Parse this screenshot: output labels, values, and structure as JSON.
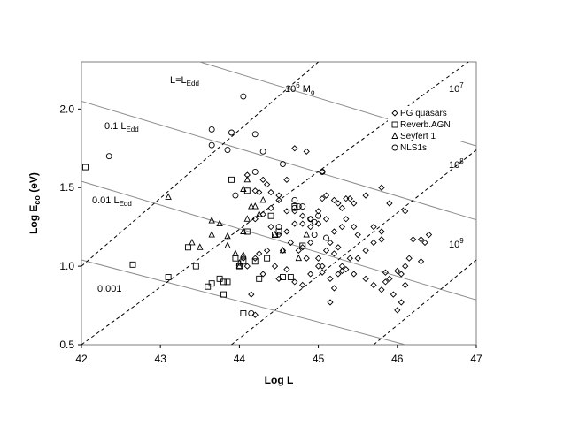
{
  "chart_data": {
    "type": "scatter",
    "xlabel": "Log L",
    "ylabel_main": "Log E",
    "ylabel_sub": "co",
    "ylabel_tail": " (eV)",
    "xlim": [
      42,
      47
    ],
    "ylim": [
      0.5,
      2.3
    ],
    "xticks": [
      "42",
      "43",
      "44",
      "45",
      "46",
      "47"
    ],
    "yticks": [
      "0.5",
      "1.0",
      "1.5",
      "2.0"
    ],
    "xtick_values": [
      42,
      43,
      44,
      45,
      46,
      47
    ],
    "ytick_values": [
      0.5,
      1.0,
      1.5,
      2.0
    ],
    "grid": false,
    "legend_position": "top-right",
    "series": [
      {
        "name": "PG quasars",
        "marker": "diamond",
        "points": [
          [
            44.1,
            1.58
          ],
          [
            44.2,
            1.48
          ],
          [
            44.25,
            1.47
          ],
          [
            44.3,
            1.55
          ],
          [
            44.35,
            1.52
          ],
          [
            44.4,
            1.47
          ],
          [
            44.5,
            1.45
          ],
          [
            44.6,
            1.55
          ],
          [
            44.7,
            1.75
          ],
          [
            44.85,
            1.73
          ],
          [
            45.05,
            1.6
          ],
          [
            44.4,
            1.37
          ],
          [
            44.5,
            1.42
          ],
          [
            44.6,
            1.35
          ],
          [
            44.7,
            1.35
          ],
          [
            44.8,
            1.32
          ],
          [
            44.9,
            1.3
          ],
          [
            45.0,
            1.35
          ],
          [
            45.05,
            1.43
          ],
          [
            45.1,
            1.45
          ],
          [
            45.2,
            1.42
          ],
          [
            45.25,
            1.4
          ],
          [
            45.3,
            1.37
          ],
          [
            45.35,
            1.43
          ],
          [
            45.4,
            1.43
          ],
          [
            45.45,
            1.4
          ],
          [
            45.6,
            1.45
          ],
          [
            45.8,
            1.5
          ],
          [
            45.9,
            1.4
          ],
          [
            44.2,
            1.3
          ],
          [
            44.3,
            1.33
          ],
          [
            44.4,
            1.25
          ],
          [
            44.5,
            1.2
          ],
          [
            44.6,
            1.22
          ],
          [
            44.7,
            1.27
          ],
          [
            44.8,
            1.27
          ],
          [
            44.9,
            1.25
          ],
          [
            45.0,
            1.27
          ],
          [
            45.1,
            1.3
          ],
          [
            45.2,
            1.22
          ],
          [
            45.3,
            1.25
          ],
          [
            45.35,
            1.3
          ],
          [
            45.45,
            1.25
          ],
          [
            45.5,
            1.2
          ],
          [
            45.7,
            1.25
          ],
          [
            45.8,
            1.22
          ],
          [
            44.05,
            1.05
          ],
          [
            44.1,
            1.0
          ],
          [
            44.2,
            1.05
          ],
          [
            44.35,
            1.1
          ],
          [
            44.45,
            1.0
          ],
          [
            44.55,
            1.1
          ],
          [
            44.65,
            1.15
          ],
          [
            44.75,
            1.1
          ],
          [
            44.85,
            1.05
          ],
          [
            44.9,
            1.15
          ],
          [
            45.0,
            1.05
          ],
          [
            45.05,
            1.0
          ],
          [
            45.1,
            1.1
          ],
          [
            45.15,
            1.15
          ],
          [
            45.2,
            1.08
          ],
          [
            45.25,
            1.12
          ],
          [
            45.3,
            1.0
          ],
          [
            45.35,
            0.98
          ],
          [
            45.4,
            1.05
          ],
          [
            45.5,
            1.05
          ],
          [
            45.6,
            1.1
          ],
          [
            45.7,
            1.15
          ],
          [
            45.8,
            1.17
          ],
          [
            44.3,
            0.95
          ],
          [
            44.5,
            0.92
          ],
          [
            44.6,
            0.98
          ],
          [
            44.7,
            0.9
          ],
          [
            44.8,
            0.88
          ],
          [
            44.9,
            0.95
          ],
          [
            45.0,
            1.0
          ],
          [
            45.05,
            0.96
          ],
          [
            45.15,
            0.92
          ],
          [
            45.2,
            0.86
          ],
          [
            45.25,
            0.95
          ],
          [
            45.3,
            0.97
          ],
          [
            45.45,
            0.95
          ],
          [
            45.6,
            0.92
          ],
          [
            45.7,
            0.88
          ],
          [
            45.8,
            0.85
          ],
          [
            45.85,
            0.9
          ],
          [
            45.9,
            0.92
          ],
          [
            46.0,
            0.97
          ],
          [
            46.05,
            0.95
          ],
          [
            46.1,
            0.88
          ],
          [
            45.85,
            0.96
          ],
          [
            45.95,
            0.82
          ],
          [
            46.0,
            0.72
          ],
          [
            46.05,
            0.77
          ],
          [
            46.1,
            1.0
          ],
          [
            46.15,
            1.05
          ],
          [
            46.2,
            1.17
          ],
          [
            46.3,
            1.17
          ],
          [
            46.35,
            1.15
          ],
          [
            46.4,
            1.2
          ],
          [
            46.3,
            1.03
          ],
          [
            46.1,
            1.35
          ],
          [
            44.15,
            0.82
          ],
          [
            44.2,
            0.69
          ],
          [
            45.15,
            0.77
          ],
          [
            44.25,
            1.08
          ],
          [
            44.8,
            1.12
          ]
        ]
      },
      {
        "name": "Reverb.AGN",
        "marker": "square",
        "points": [
          [
            42.05,
            1.63
          ],
          [
            42.65,
            1.01
          ],
          [
            43.1,
            0.93
          ],
          [
            43.35,
            1.12
          ],
          [
            43.45,
            1.0
          ],
          [
            43.6,
            0.87
          ],
          [
            43.65,
            0.89
          ],
          [
            43.75,
            0.92
          ],
          [
            43.8,
            0.9
          ],
          [
            43.8,
            0.82
          ],
          [
            43.85,
            0.9
          ],
          [
            43.95,
            1.05
          ],
          [
            44.0,
            1.0
          ],
          [
            44.05,
            1.03
          ],
          [
            44.05,
            0.7
          ],
          [
            44.1,
            1.22
          ],
          [
            44.2,
            1.03
          ],
          [
            44.25,
            0.92
          ],
          [
            44.35,
            1.05
          ],
          [
            44.45,
            1.2
          ],
          [
            44.5,
            1.22
          ],
          [
            44.1,
            1.48
          ],
          [
            43.9,
            1.55
          ],
          [
            44.4,
            1.32
          ],
          [
            44.55,
            0.93
          ],
          [
            44.65,
            0.93
          ],
          [
            44.7,
            1.38
          ],
          [
            44.8,
            1.13
          ]
        ]
      },
      {
        "name": "Seyfert 1",
        "marker": "triangle",
        "points": [
          [
            43.1,
            1.44
          ],
          [
            43.4,
            1.15
          ],
          [
            43.5,
            1.12
          ],
          [
            43.65,
            1.2
          ],
          [
            43.85,
            1.19
          ],
          [
            43.85,
            1.13
          ],
          [
            43.95,
            1.08
          ],
          [
            44.0,
            1.0
          ],
          [
            44.0,
            1.02
          ],
          [
            44.05,
            1.07
          ],
          [
            44.05,
            1.22
          ],
          [
            44.1,
            1.3
          ],
          [
            44.15,
            1.38
          ],
          [
            44.2,
            1.38
          ],
          [
            44.25,
            1.33
          ],
          [
            44.05,
            1.49
          ],
          [
            44.1,
            1.55
          ],
          [
            44.3,
            1.42
          ],
          [
            44.45,
            1.2
          ],
          [
            44.55,
            1.1
          ],
          [
            44.75,
            1.05
          ],
          [
            44.85,
            1.2
          ],
          [
            43.65,
            1.29
          ],
          [
            43.75,
            1.27
          ]
        ]
      },
      {
        "name": "NLS1s",
        "marker": "circle",
        "points": [
          [
            42.35,
            1.7
          ],
          [
            43.65,
            1.87
          ],
          [
            43.65,
            1.77
          ],
          [
            43.85,
            1.74
          ],
          [
            43.9,
            1.85
          ],
          [
            44.05,
            2.08
          ],
          [
            44.2,
            1.84
          ],
          [
            44.3,
            1.73
          ],
          [
            43.95,
            1.45
          ],
          [
            44.55,
            1.65
          ],
          [
            44.2,
            1.6
          ],
          [
            44.8,
            1.38
          ],
          [
            44.9,
            1.3
          ],
          [
            44.95,
            1.28
          ],
          [
            45.0,
            1.32
          ],
          [
            45.05,
            1.6
          ],
          [
            44.95,
            1.2
          ],
          [
            45.1,
            1.18
          ],
          [
            44.5,
            1.25
          ],
          [
            44.7,
            1.42
          ],
          [
            44.75,
            1.38
          ],
          [
            44.15,
            0.7
          ],
          [
            44.7,
            1.37
          ]
        ]
      }
    ],
    "annotations": [
      {
        "label": "L=L",
        "sub": "Edd"
      },
      {
        "label": "10",
        "sup": "6",
        "tail": " M",
        "tailsub": "o"
      },
      {
        "label": "10",
        "sup": "7"
      },
      {
        "label": "0.1 L",
        "sub": "Edd"
      },
      {
        "label": "10",
        "sup": "8"
      },
      {
        "label": "0.01 L",
        "sub": "Edd"
      },
      {
        "label": "10",
        "sup": "9"
      },
      {
        "label": "0.001"
      }
    ],
    "solid_lines": [
      {
        "from": [
          42,
          2.05
        ],
        "to": [
          47,
          1.295
        ]
      },
      {
        "from": [
          42,
          1.54
        ],
        "to": [
          47,
          0.785
        ]
      },
      {
        "from": [
          42,
          1.04
        ],
        "to": [
          46.1,
          0.5
        ]
      },
      {
        "from": [
          43.5,
          2.3
        ],
        "to": [
          47,
          1.765
        ]
      }
    ],
    "dashed_lines": [
      {
        "from": [
          42,
          1.0
        ],
        "to": [
          45.0,
          2.3
        ]
      },
      {
        "from": [
          42,
          0.5
        ],
        "to": [
          46.9,
          2.3
        ]
      },
      {
        "from": [
          43.9,
          0.5
        ],
        "to": [
          47,
          1.74
        ]
      },
      {
        "from": [
          45.7,
          0.5
        ],
        "to": [
          47,
          1.04
        ]
      }
    ]
  }
}
